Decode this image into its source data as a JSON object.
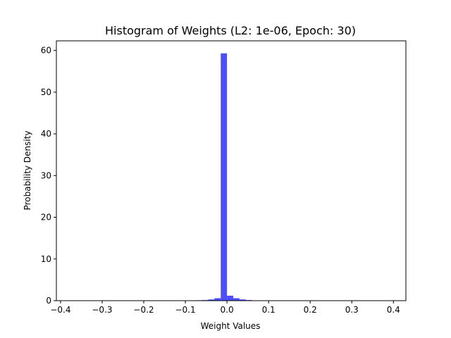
{
  "chart_data": {
    "type": "bar",
    "title": "Histogram of Weights (L2: 1e-06, Epoch: 30)",
    "xlabel": "Weight Values",
    "ylabel": "Probability Density",
    "xlim": [
      -0.41,
      0.43
    ],
    "ylim": [
      0,
      62.3
    ],
    "xticks": [
      -0.4,
      -0.3,
      -0.2,
      -0.1,
      0.0,
      0.1,
      0.2,
      0.3,
      0.4
    ],
    "xtick_labels": [
      "−0.4",
      "−0.3",
      "−0.2",
      "−0.1",
      "0.0",
      "0.1",
      "0.2",
      "0.3",
      "0.4"
    ],
    "yticks": [
      0,
      10,
      20,
      30,
      40,
      50,
      60
    ],
    "ytick_labels": [
      "0",
      "10",
      "20",
      "30",
      "40",
      "50",
      "60"
    ],
    "bar_color": "#4d4dff",
    "grid": false,
    "bins": [
      {
        "x0": -0.09,
        "x1": -0.075,
        "value": 0.05
      },
      {
        "x0": -0.075,
        "x1": -0.06,
        "value": 0.1
      },
      {
        "x0": -0.06,
        "x1": -0.045,
        "value": 0.15
      },
      {
        "x0": -0.045,
        "x1": -0.03,
        "value": 0.3
      },
      {
        "x0": -0.03,
        "x1": -0.015,
        "value": 0.6
      },
      {
        "x0": -0.015,
        "x1": 0.0,
        "value": 59.3
      },
      {
        "x0": 0.0,
        "x1": 0.015,
        "value": 1.2
      },
      {
        "x0": 0.015,
        "x1": 0.03,
        "value": 0.6
      },
      {
        "x0": 0.03,
        "x1": 0.045,
        "value": 0.3
      },
      {
        "x0": 0.045,
        "x1": 0.06,
        "value": 0.15
      },
      {
        "x0": 0.06,
        "x1": 0.075,
        "value": 0.05
      }
    ]
  }
}
